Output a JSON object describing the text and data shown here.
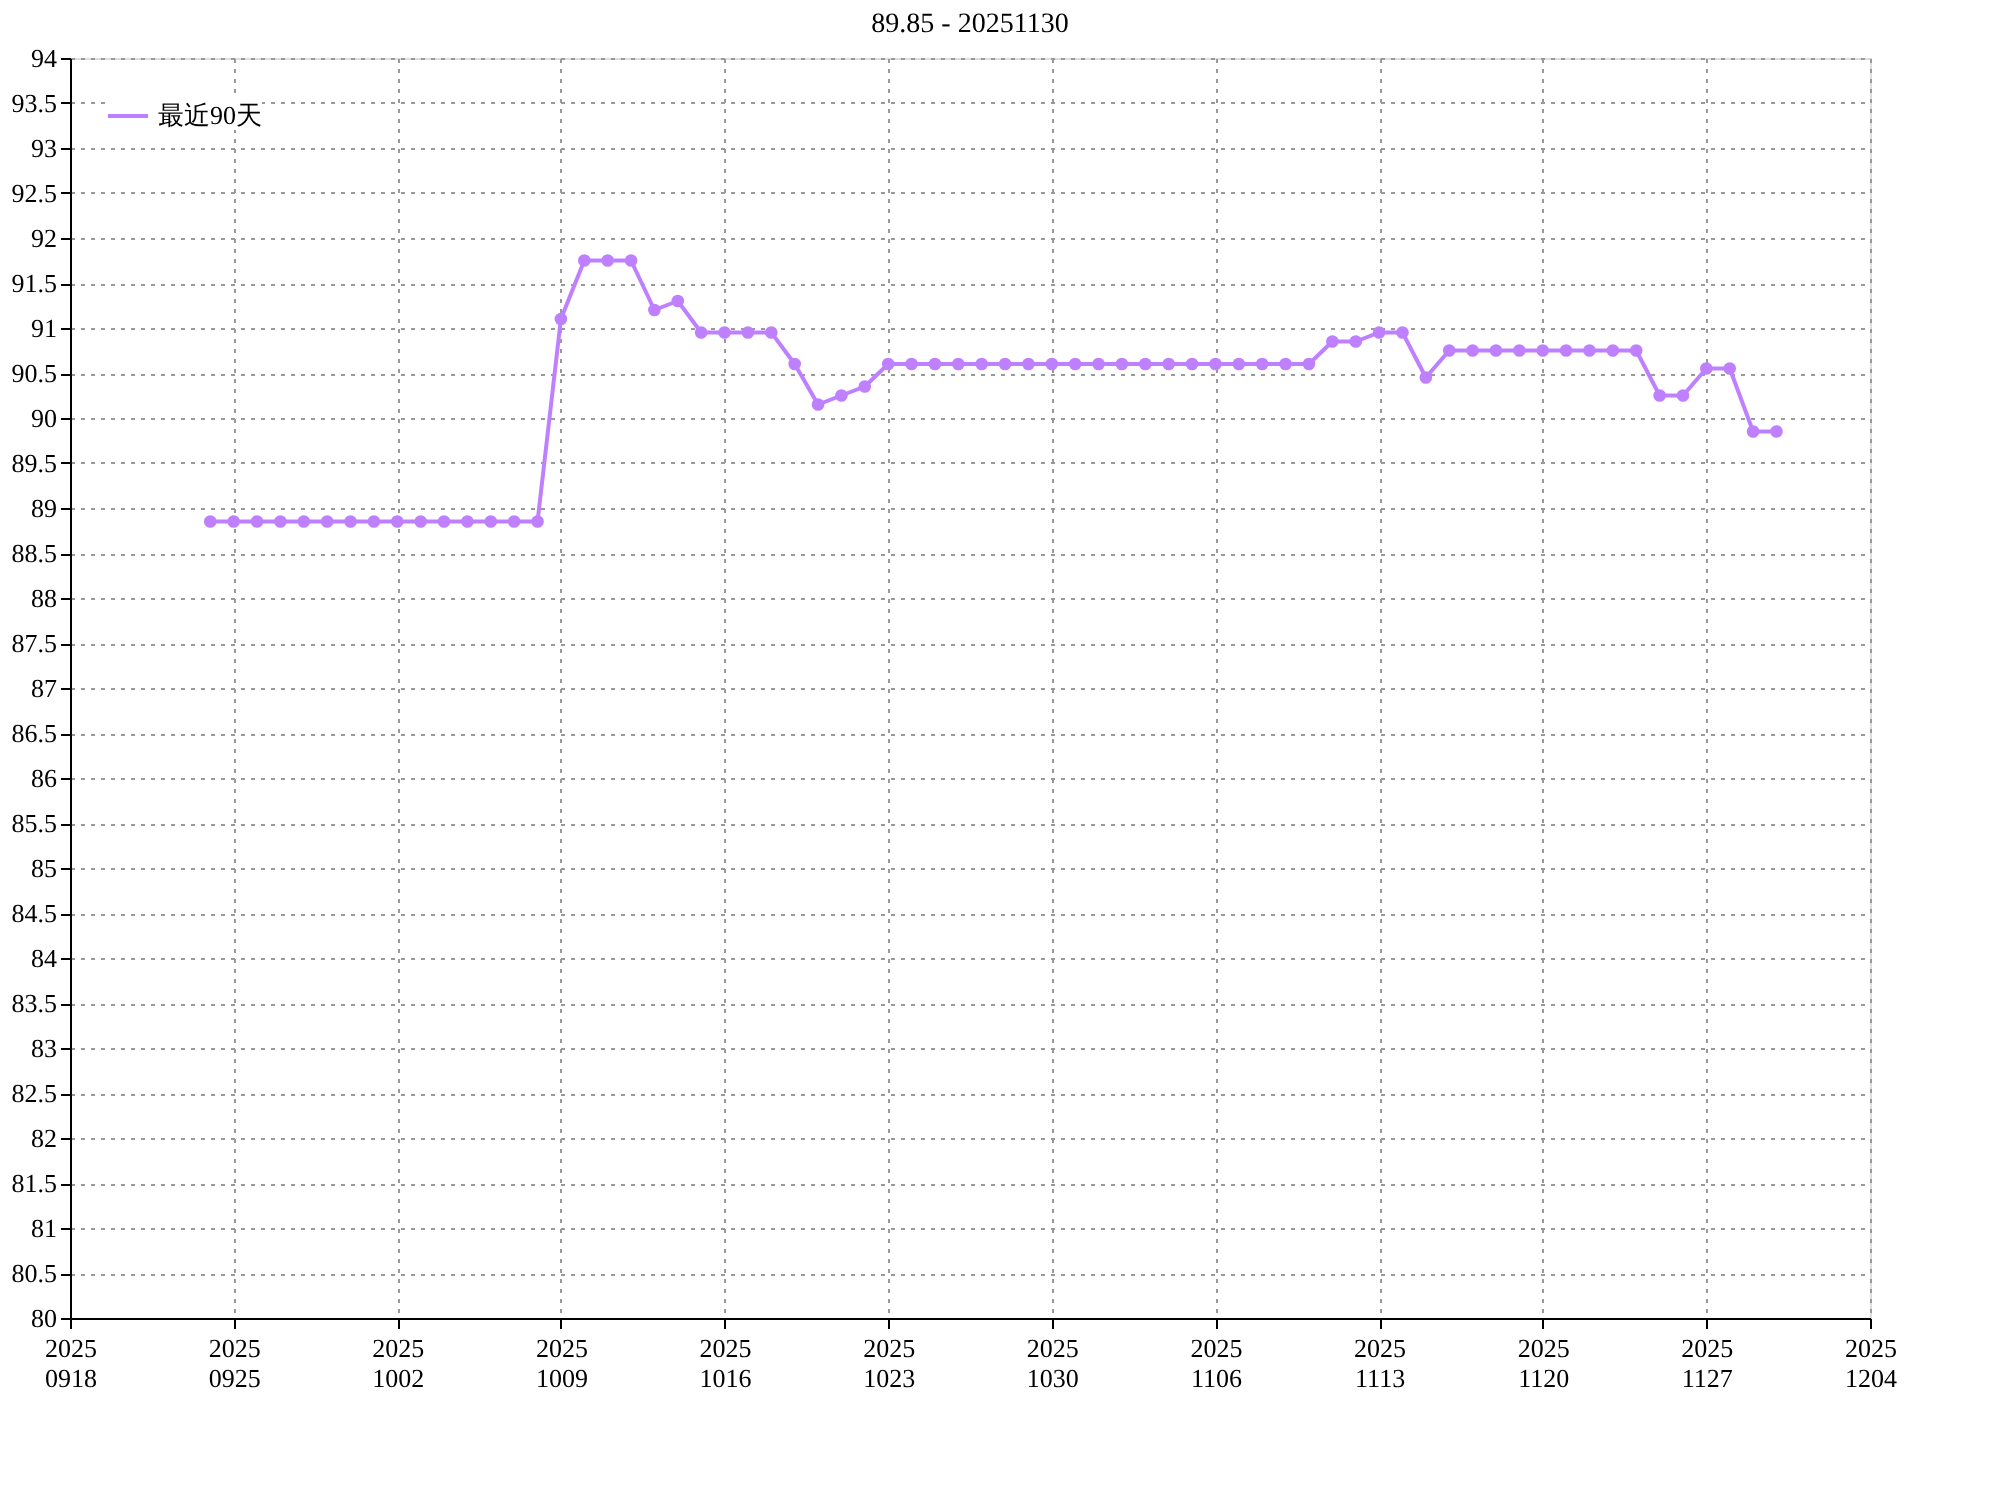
{
  "chart_data": {
    "type": "line",
    "title": "89.85 - 20251130",
    "x": [
      "2025-09-24",
      "2025-09-25",
      "2025-09-26",
      "2025-09-27",
      "2025-09-28",
      "2025-09-29",
      "2025-09-30",
      "2025-10-01",
      "2025-10-02",
      "2025-10-03",
      "2025-10-04",
      "2025-10-05",
      "2025-10-06",
      "2025-10-07",
      "2025-10-08",
      "2025-10-09",
      "2025-10-10",
      "2025-10-11",
      "2025-10-12",
      "2025-10-13",
      "2025-10-14",
      "2025-10-15",
      "2025-10-16",
      "2025-10-17",
      "2025-10-18",
      "2025-10-19",
      "2025-10-20",
      "2025-10-21",
      "2025-10-22",
      "2025-10-23",
      "2025-10-24",
      "2025-10-25",
      "2025-10-26",
      "2025-10-27",
      "2025-10-28",
      "2025-10-29",
      "2025-10-30",
      "2025-10-31",
      "2025-11-01",
      "2025-11-02",
      "2025-11-03",
      "2025-11-04",
      "2025-11-05",
      "2025-11-06",
      "2025-11-07",
      "2025-11-08",
      "2025-11-09",
      "2025-11-10",
      "2025-11-11",
      "2025-11-12",
      "2025-11-13",
      "2025-11-14",
      "2025-11-15",
      "2025-11-16",
      "2025-11-17",
      "2025-11-18",
      "2025-11-19",
      "2025-11-20",
      "2025-11-21",
      "2025-11-22",
      "2025-11-23",
      "2025-11-24",
      "2025-11-25",
      "2025-11-26",
      "2025-11-27",
      "2025-11-28",
      "2025-11-29",
      "2025-11-30"
    ],
    "series": [
      {
        "name": "最近90天",
        "color": "#bf80ff",
        "values": [
          88.85,
          88.85,
          88.85,
          88.85,
          88.85,
          88.85,
          88.85,
          88.85,
          88.85,
          88.85,
          88.85,
          88.85,
          88.85,
          88.85,
          88.85,
          91.1,
          91.75,
          91.75,
          91.75,
          91.2,
          91.3,
          90.95,
          90.95,
          90.95,
          90.95,
          90.6,
          90.15,
          90.25,
          90.35,
          90.6,
          90.6,
          90.6,
          90.6,
          90.6,
          90.6,
          90.6,
          90.6,
          90.6,
          90.6,
          90.6,
          90.6,
          90.6,
          90.6,
          90.6,
          90.6,
          90.6,
          90.6,
          90.6,
          90.85,
          90.85,
          90.95,
          90.95,
          90.45,
          90.75,
          90.75,
          90.75,
          90.75,
          90.75,
          90.75,
          90.75,
          90.75,
          90.75,
          90.25,
          90.25,
          90.55,
          90.55,
          89.85,
          89.85
        ]
      }
    ],
    "xlim": [
      "2025-09-18",
      "2025-12-04"
    ],
    "xticks": [
      {
        "value": "2025-09-18",
        "label": "2025\n0918"
      },
      {
        "value": "2025-09-25",
        "label": "2025\n0925"
      },
      {
        "value": "2025-10-02",
        "label": "2025\n1002"
      },
      {
        "value": "2025-10-09",
        "label": "2025\n1009"
      },
      {
        "value": "2025-10-16",
        "label": "2025\n1016"
      },
      {
        "value": "2025-10-23",
        "label": "2025\n1023"
      },
      {
        "value": "2025-10-30",
        "label": "2025\n1030"
      },
      {
        "value": "2025-11-06",
        "label": "2025\n1106"
      },
      {
        "value": "2025-11-13",
        "label": "2025\n1113"
      },
      {
        "value": "2025-11-20",
        "label": "2025\n1120"
      },
      {
        "value": "2025-11-27",
        "label": "2025\n1127"
      },
      {
        "value": "2025-12-04",
        "label": "2025\n1204"
      }
    ],
    "ylim": [
      80,
      94
    ],
    "yticks": [
      80,
      80.5,
      81,
      81.5,
      82,
      82.5,
      83,
      83.5,
      84,
      84.5,
      85,
      85.5,
      86,
      86.5,
      87,
      87.5,
      88,
      88.5,
      89,
      89.5,
      90,
      90.5,
      91,
      91.5,
      92,
      92.5,
      93,
      93.5,
      94
    ],
    "grid": true,
    "legend": "top left",
    "marker": "circle",
    "line_style": "solid"
  }
}
